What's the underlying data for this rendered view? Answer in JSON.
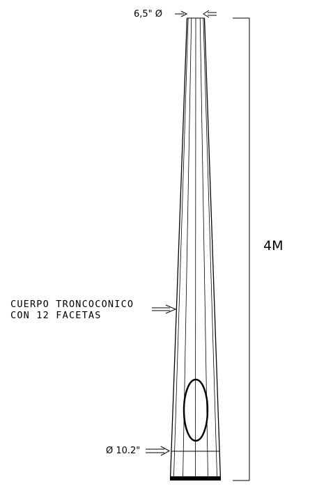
{
  "labels": {
    "top_diameter": "6,5\" Ø",
    "height": "4M",
    "body_line1": "CUERPO TRONCOCONICO",
    "body_line2": "CON 12 FACETAS",
    "base_diameter": "Ø 10.2\""
  }
}
